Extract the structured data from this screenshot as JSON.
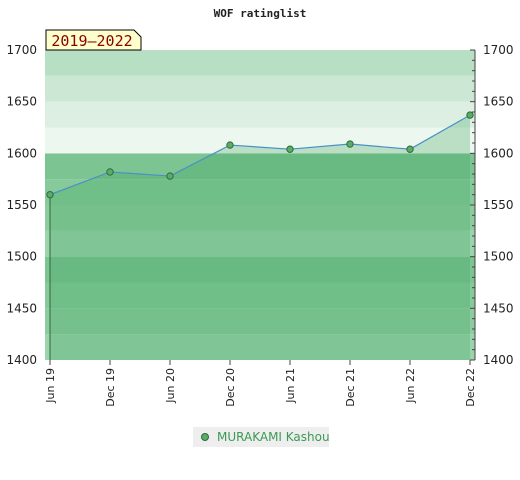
{
  "chart_data": {
    "type": "area",
    "title": "WOF ratinglist",
    "period_label": "2019–2022",
    "categories": [
      "Jun 19",
      "Dec 19",
      "Jun 20",
      "Dec 20",
      "Jun 21",
      "Dec 21",
      "Jun 22",
      "Dec 22"
    ],
    "series": [
      {
        "name": "MURAKAMI Kashou",
        "values": [
          1560,
          1582,
          1578,
          1608,
          1604,
          1609,
          1604,
          1637
        ]
      }
    ],
    "y_ticks": [
      1400,
      1450,
      1500,
      1550,
      1600,
      1650,
      1700
    ],
    "ylim": [
      1400,
      1700
    ],
    "xlabel": "",
    "ylabel": "",
    "grid": true,
    "legend_position": "bottom-center",
    "colors": {
      "line": "#4a90c8",
      "marker_fill": "#5bab6b",
      "marker_stroke": "#2e6b3a",
      "area_fill": "#3aa05a",
      "band_light": "#e8f5ec",
      "band_dark": "#7cc492",
      "legend_text": "#3a9a55",
      "period_bg": "#ffffcc",
      "period_text": "#8b0000"
    }
  }
}
